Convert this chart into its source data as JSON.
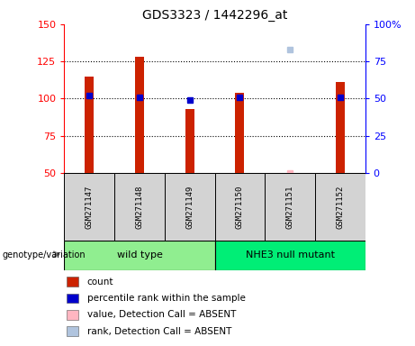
{
  "title": "GDS3323 / 1442296_at",
  "samples": [
    "GSM271147",
    "GSM271148",
    "GSM271149",
    "GSM271150",
    "GSM271151",
    "GSM271152"
  ],
  "count_values": [
    115,
    128,
    93,
    104,
    null,
    111
  ],
  "rank_values": [
    52,
    51,
    49,
    51,
    null,
    51
  ],
  "absent_value": [
    null,
    null,
    null,
    null,
    50,
    null
  ],
  "absent_rank": [
    null,
    null,
    null,
    null,
    83,
    null
  ],
  "ylim_left": [
    50,
    150
  ],
  "ylim_right": [
    0,
    100
  ],
  "yticks_left": [
    50,
    75,
    100,
    125,
    150
  ],
  "yticks_right": [
    0,
    25,
    50,
    75,
    100
  ],
  "bar_color": "#CC2200",
  "rank_color": "#0000CC",
  "absent_val_color": "#FFB6C1",
  "absent_rank_color": "#B0C4DE",
  "gray_bg": "#D3D3D3",
  "wt_color": "#90EE90",
  "nhe_color": "#00EE76",
  "bar_width": 0.18,
  "grid_lines": [
    75,
    100,
    125
  ],
  "wt_label": "wild type",
  "nhe_label": "NHE3 null mutant",
  "wt_samples": [
    0,
    1,
    2
  ],
  "nhe_samples": [
    3,
    4,
    5
  ],
  "legend_items": [
    [
      "#CC2200",
      "count"
    ],
    [
      "#0000CC",
      "percentile rank within the sample"
    ],
    [
      "#FFB6C1",
      "value, Detection Call = ABSENT"
    ],
    [
      "#B0C4DE",
      "rank, Detection Call = ABSENT"
    ]
  ],
  "genotype_label": "genotype/variation"
}
